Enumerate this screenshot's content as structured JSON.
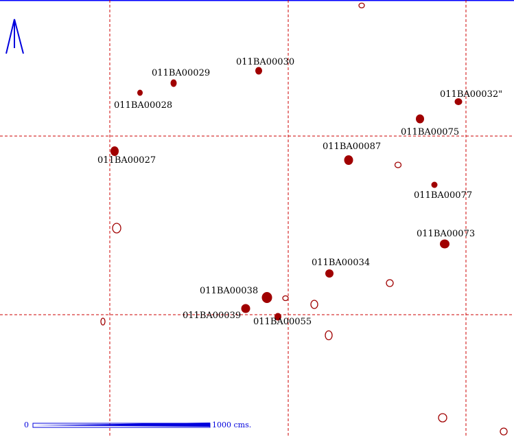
{
  "colors": {
    "feature": "#a00000",
    "outline": "#a00000",
    "grid": "#cc0000",
    "north": "#0000dd",
    "scale": "#0000dd",
    "frame": "#0000ff"
  },
  "north_arrow": {
    "icon": "north-arrow-icon"
  },
  "features": [
    {
      "id": "011BA00027",
      "label": "011BA00027"
    },
    {
      "id": "011BA00028",
      "label": "011BA00028"
    },
    {
      "id": "011BA00029",
      "label": "011BA00029"
    },
    {
      "id": "011BA00030",
      "label": "011BA00030"
    },
    {
      "id": "011BA00032",
      "label": "011BA00032\""
    },
    {
      "id": "011BA00075",
      "label": "011BA00075"
    },
    {
      "id": "011BA00087",
      "label": "011BA00087"
    },
    {
      "id": "011BA00077",
      "label": "011BA00077"
    },
    {
      "id": "011BA00073",
      "label": "011BA00073"
    },
    {
      "id": "011BA00034",
      "label": "011BA00034"
    },
    {
      "id": "011BA00038",
      "label": "011BA00038"
    },
    {
      "id": "011BA00039",
      "label": "011BA00039"
    },
    {
      "id": "011BA00055",
      "label": "011BA00055"
    }
  ],
  "scale_bar": {
    "start_label": "0",
    "end_label": "1000  cms."
  }
}
